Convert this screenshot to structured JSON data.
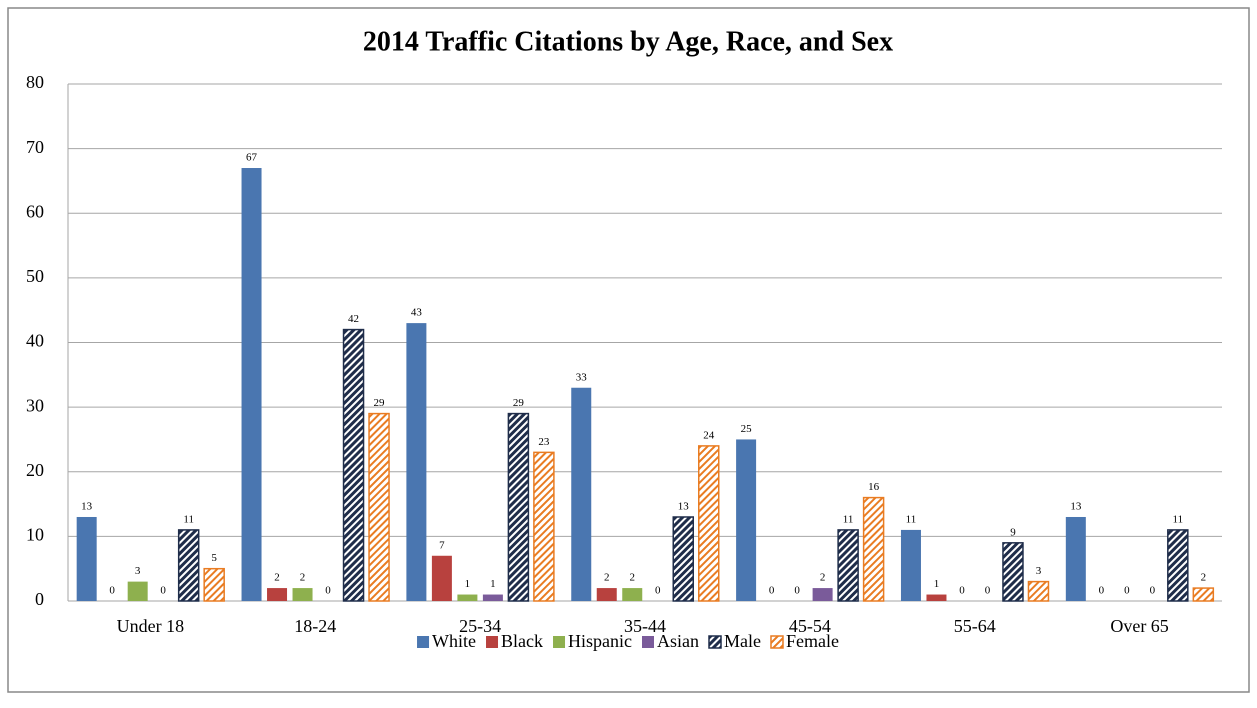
{
  "chart_data": {
    "type": "bar",
    "title": "2014 Traffic Citations by Age, Race, and Sex",
    "categories": [
      "Under 18",
      "18-24",
      "25-34",
      "35-44",
      "45-54",
      "55-64",
      "Over 65"
    ],
    "series": [
      {
        "name": "White",
        "color": "#4a76b0",
        "values": [
          13,
          67,
          43,
          33,
          25,
          11,
          13
        ]
      },
      {
        "name": "Black",
        "color": "#b8413e",
        "values": [
          0,
          2,
          7,
          2,
          0,
          1,
          0
        ]
      },
      {
        "name": "Hispanic",
        "color": "#8eb04e",
        "values": [
          3,
          2,
          1,
          2,
          0,
          0,
          0
        ]
      },
      {
        "name": "Asian",
        "color": "#7a5b9a",
        "values": [
          0,
          0,
          1,
          0,
          2,
          0,
          0
        ]
      },
      {
        "name": "Male",
        "color": "#1f2d4a",
        "hatch": true,
        "values": [
          11,
          42,
          29,
          13,
          11,
          9,
          11
        ]
      },
      {
        "name": "Female",
        "color": "#e97c22",
        "hatch": true,
        "values": [
          5,
          29,
          23,
          24,
          16,
          3,
          2
        ]
      }
    ],
    "ylim": [
      0,
      80
    ],
    "yticks": [
      0,
      10,
      20,
      30,
      40,
      50,
      60,
      70,
      80
    ],
    "grid": true,
    "legend": "bottom"
  }
}
